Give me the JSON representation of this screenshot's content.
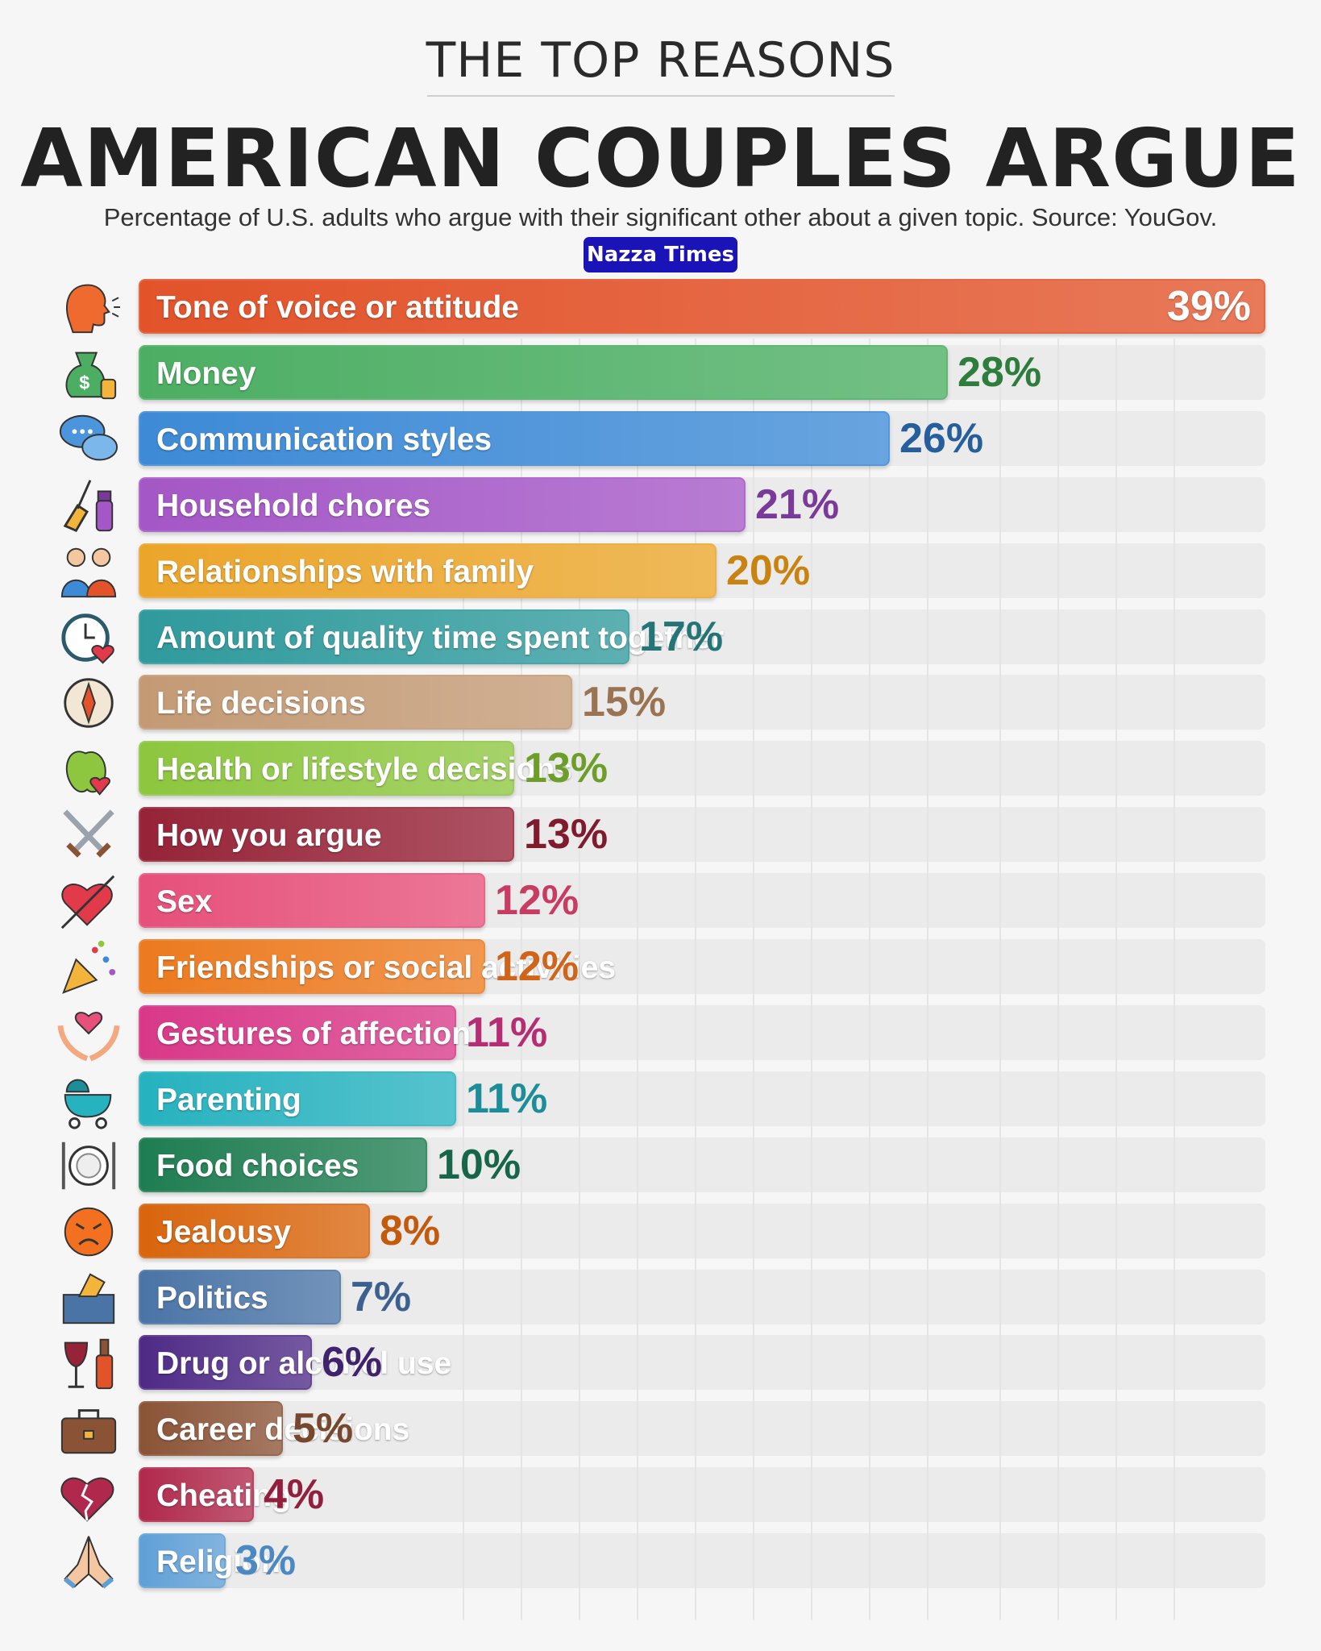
{
  "header": {
    "pretitle": "THE TOP REASONS",
    "title": "AMERICAN COUPLES ARGUE",
    "subtitle": "Percentage of U.S. adults who argue with their significant other about a given topic. Source: YouGov.",
    "brand": "Nazza Times"
  },
  "chart_data": {
    "type": "bar",
    "orientation": "horizontal",
    "title": "AMERICAN COUPLES ARGUE",
    "unit": "%",
    "xlim": [
      0,
      39
    ],
    "categories": [
      "Tone of voice or attitude",
      "Money",
      "Communication styles",
      "Household chores",
      "Relationships with family",
      "Amount of quality time spent together",
      "Life decisions",
      "Health or lifestyle decisions",
      "How you argue",
      "Sex",
      "Friendships or social activities",
      "Gestures of affection",
      "Parenting",
      "Food choices",
      "Jealousy",
      "Politics",
      "Drug or alcohol use",
      "Career decisions",
      "Cheating",
      "Religion"
    ],
    "values": [
      39,
      28,
      26,
      21,
      20,
      17,
      15,
      13,
      13,
      12,
      12,
      11,
      11,
      10,
      8,
      7,
      6,
      5,
      4,
      3
    ],
    "value_labels": [
      "39%",
      "28%",
      "26%",
      "21%",
      "20%",
      "17%",
      "15%",
      "13%",
      "13%",
      "12%",
      "12%",
      "11%",
      "11%",
      "10%",
      "8%",
      "7%",
      "6%",
      "5%",
      "4%",
      "3%"
    ],
    "colors": [
      "#e2532a",
      "#4cae63",
      "#3d8ad6",
      "#a457c6",
      "#eba52a",
      "#2f9a9c",
      "#c39a74",
      "#8dc63f",
      "#962337",
      "#e6507a",
      "#ec7a1f",
      "#d93888",
      "#26b2bf",
      "#1f7d52",
      "#d9650d",
      "#4a74a6",
      "#4e2a86",
      "#8a5336",
      "#b0294c",
      "#5f9fd6"
    ],
    "value_colors": [
      "#ffffff",
      "#2e7d3d",
      "#265f9e",
      "#7a3a99",
      "#c98310",
      "#247478",
      "#9a7452",
      "#6d9e2a",
      "#7e1b2c",
      "#c83b63",
      "#d0651a",
      "#b52d72",
      "#1d8e99",
      "#18664a",
      "#c45a0c",
      "#3c6190",
      "#40236f",
      "#77482d",
      "#931f3e",
      "#4c89c2"
    ],
    "icons": [
      "speaking-head-icon",
      "money-bag-icon",
      "speech-bubbles-icon",
      "broom-spray-icon",
      "family-icon",
      "clock-heart-icon",
      "compass-icon",
      "apple-heart-icon",
      "crossed-swords-icon",
      "heart-arrow-icon",
      "party-popper-icon",
      "hands-heart-icon",
      "baby-carriage-icon",
      "fork-plate-knife-icon",
      "angry-face-icon",
      "ballot-box-icon",
      "wine-bottle-icon",
      "briefcase-icon",
      "broken-heart-icon",
      "praying-hands-icon"
    ]
  }
}
